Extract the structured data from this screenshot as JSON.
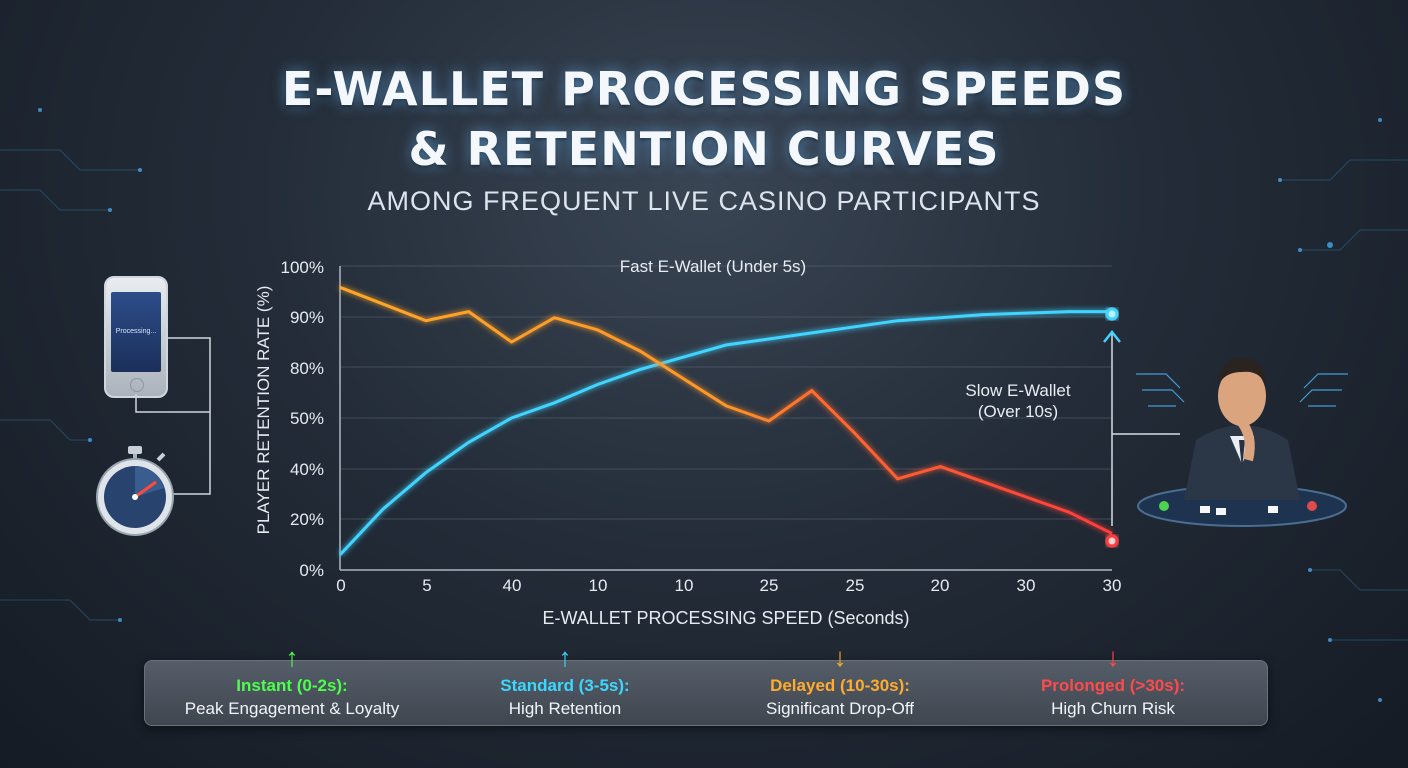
{
  "title_line1": "E-WALLET PROCESSING SPEEDS",
  "title_line2": "& RETENTION CURVES",
  "subtitle": "AMONG FREQUENT LIVE CASINO PARTICIPANTS",
  "phone_screen_text": "Processing...",
  "icons": [
    "phone-icon",
    "stopwatch-icon",
    "thinking-player-icon"
  ],
  "colors": {
    "fast": "#3fd4ff",
    "slow_start": "#ffa726",
    "slow_end": "#ff3b3b",
    "instant": "#4dff4d",
    "standard": "#3ad8ff",
    "delayed": "#ffab2e",
    "prolonged": "#ff4a4a"
  },
  "chart_data": {
    "type": "line",
    "title": "",
    "xlabel": "E-WALLET PROCESSING SPEED (Seconds)",
    "ylabel": "PLAYER RETENTION RATE (%)",
    "x_tick_labels": [
      "0",
      "5",
      "40",
      "10",
      "10",
      "25",
      "25",
      "20",
      "30",
      "30"
    ],
    "y_tick_labels": [
      "0%",
      "20%",
      "40%",
      "50%",
      "80%",
      "90%",
      "100%"
    ],
    "ylim": [
      0,
      100
    ],
    "grid": true,
    "annotations": [
      "Fast E-Wallet (Under 5s)",
      "Slow E-Wallet\n(Over 10s)"
    ],
    "series": [
      {
        "name": "Fast E-Wallet (Under 5s)",
        "x": [
          0,
          0.5,
          1,
          1.5,
          2,
          2.5,
          3,
          3.5,
          4,
          4.5,
          5,
          5.5,
          6,
          6.5,
          7,
          7.5,
          8,
          8.5,
          9
        ],
        "y": [
          5,
          20,
          32,
          42,
          50,
          55,
          61,
          66,
          70,
          74,
          76,
          78,
          80,
          82,
          83,
          84,
          84.5,
          85,
          85
        ]
      },
      {
        "name": "Slow E-Wallet (Over 10s)",
        "x": [
          0,
          1,
          1.5,
          2,
          2.5,
          3,
          3.5,
          4,
          4.5,
          5,
          5.5,
          6,
          6.5,
          7,
          7.5,
          8,
          8.5,
          9
        ],
        "y": [
          93,
          82,
          85,
          75,
          83,
          79,
          72,
          63,
          54,
          49,
          59,
          45,
          30,
          34,
          29,
          24,
          19,
          12
        ]
      }
    ]
  },
  "legend": [
    {
      "title": "Instant (0-2s):",
      "desc": "Peak Engagement & Loyalty",
      "arrow": "↑"
    },
    {
      "title": "Standard (3-5s):",
      "desc": "High Retention",
      "arrow": "↑"
    },
    {
      "title": "Delayed (10-30s):",
      "desc": "Significant Drop-Off",
      "arrow": "↓"
    },
    {
      "title": "Prolonged (>30s):",
      "desc": "High Churn Risk",
      "arrow": "↓"
    }
  ]
}
